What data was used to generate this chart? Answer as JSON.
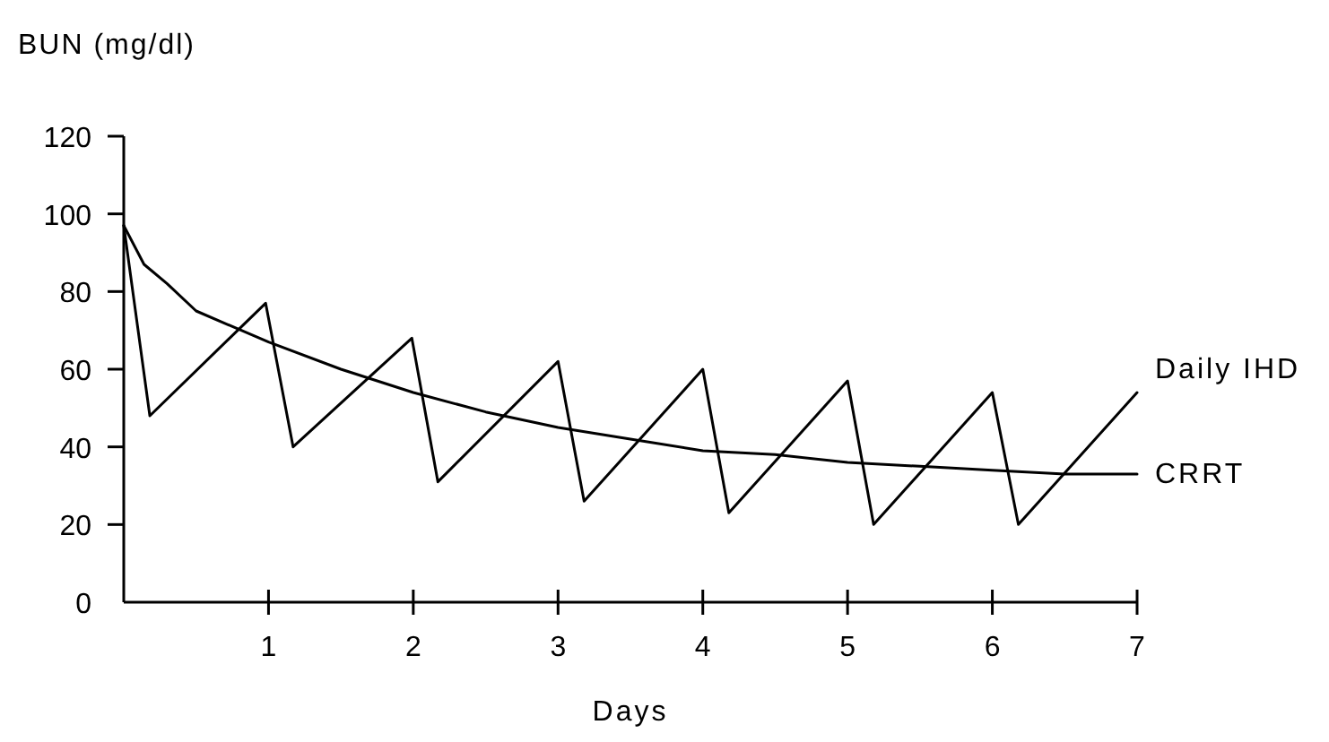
{
  "chart_data": {
    "type": "line",
    "xlabel": "Days",
    "ylabel": "BUN (mg/dl)",
    "xlim": [
      0,
      7
    ],
    "xticks": [
      1,
      2,
      3,
      4,
      5,
      6,
      7
    ],
    "ylim": [
      0,
      120
    ],
    "yticks": [
      0,
      20,
      40,
      60,
      80,
      100,
      120
    ],
    "grid": false,
    "legend": false,
    "marker": "none",
    "line_style": "solid",
    "series": [
      {
        "name": "Daily IHD",
        "color": "#000000",
        "x": [
          0,
          0.18,
          0.98,
          1.17,
          1.99,
          2.17,
          3.0,
          3.18,
          4.0,
          4.18,
          5.0,
          5.18,
          6.0,
          6.18,
          7.0
        ],
        "values": [
          97,
          48,
          77,
          40,
          68,
          31,
          62,
          26,
          60,
          23,
          57,
          20,
          54,
          20,
          54
        ]
      },
      {
        "name": "CRRT",
        "color": "#000000",
        "x": [
          0,
          0.14,
          0.3,
          0.5,
          1,
          1.5,
          2,
          2.5,
          3,
          3.5,
          4,
          4.5,
          5,
          5.5,
          6,
          6.5,
          7
        ],
        "values": [
          97,
          87,
          82,
          75,
          67,
          60,
          54,
          49,
          45,
          42,
          39,
          38,
          36,
          35,
          34,
          33,
          33
        ]
      }
    ]
  }
}
